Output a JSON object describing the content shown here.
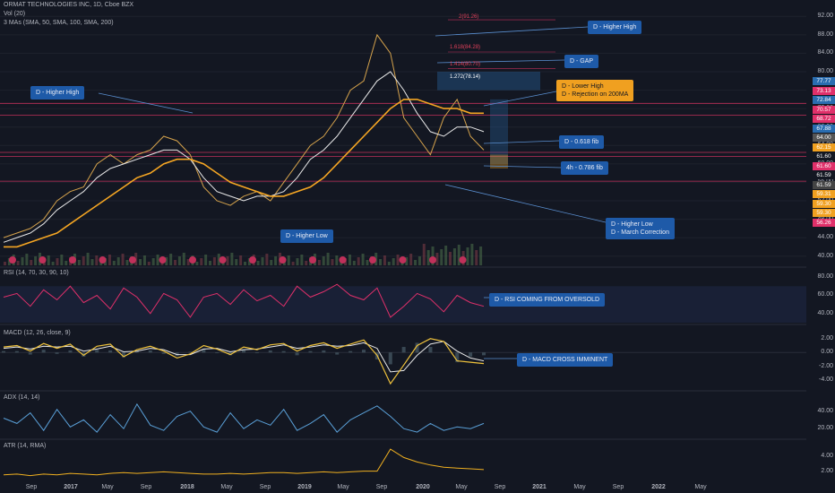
{
  "header": {
    "title": "ORMAT TECHNOLOGIES INC, 1D, Cboe BZX",
    "vol": "Vol (20)",
    "mas": "3 MAs (SMA, 50, SMA, 100, SMA, 200)",
    "rsi": "RSI (14, 70, 30, 90, 10)",
    "macd": "MACD (12, 26, close, 9)",
    "adx": "ADX (14, 14)",
    "atr": "ATR (14, RMA)"
  },
  "annotations": {
    "higher_high_top": "D - Higher High",
    "gap": "D - GAP",
    "lower_high_1": "D - Lower High",
    "lower_high_2": "D - Rejection on 200MA",
    "higher_high_left": "D - Higher High",
    "fib_0618": "D - 0.618 fib",
    "fib_0786": "4h - 0.786 fib",
    "higher_low": "D - Higher Low",
    "higher_low_2": "D - Higher Low",
    "march_correction": "D - March Correction",
    "rsi_note": "D - RSI COMING FROM OVERSOLD",
    "macd_note": "D - MACD CROSS IMMINENT"
  },
  "fib_labels": [
    "2(91.26)",
    "1.618(84.28)",
    "1.414(80.70)",
    "1.272(78.14)"
  ],
  "colors": {
    "background": "#131722",
    "price": "#d4a24c",
    "sma50": "#e9e9e9",
    "sma100": "#f5a623",
    "rsi": "#e0306a",
    "macd": "#f0c33c",
    "signal": "#e9e9e9",
    "adx": "#5aa0d8",
    "atr": "#f0b020",
    "annotation": "#1e5aa8",
    "annotation_orange": "#f0a020"
  },
  "chart_data": {
    "type": "line",
    "title": "ORMAT TECHNOLOGIES INC, 1D, Cboe BZX",
    "x_ticks": [
      "Sep",
      "2017",
      "May",
      "Sep",
      "2018",
      "May",
      "Sep",
      "2019",
      "May",
      "Sep",
      "2020",
      "May",
      "Sep",
      "2021",
      "May",
      "Sep",
      "2022",
      "May"
    ],
    "price_ticks": [
      "92.00",
      "88.00",
      "84.00",
      "80.00",
      "76.00",
      "72.00",
      "68.00",
      "64.00",
      "60.00",
      "56.00",
      "52.00",
      "48.00",
      "44.00",
      "40.00"
    ],
    "price_ylim": [
      38,
      94
    ],
    "price_tags": [
      {
        "value": "77.77",
        "color": "#2a6db0"
      },
      {
        "value": "73.13",
        "color": "#e0306a"
      },
      {
        "value": "72.84",
        "color": "#2a6db0"
      },
      {
        "value": "70.57",
        "color": "#e0306a"
      },
      {
        "value": "68.72",
        "color": "#e0306a"
      },
      {
        "value": "67.88",
        "color": "#2a6db0"
      },
      {
        "value": "64.00",
        "color": "#555"
      },
      {
        "value": "62.15",
        "color": "#f0a020"
      },
      {
        "value": "61.60",
        "color": "#131722"
      },
      {
        "value": "61.60",
        "color": "#e0306a"
      },
      {
        "value": "61.59",
        "color": "#131722"
      },
      {
        "value": "61.59",
        "color": "#444"
      },
      {
        "value": "59.31",
        "color": "#f0a020"
      },
      {
        "value": "59.30",
        "color": "#f0a020"
      },
      {
        "value": "59.30",
        "color": "#f0a020"
      },
      {
        "value": "56.26",
        "color": "#e0306a"
      }
    ],
    "series": [
      {
        "name": "Price",
        "values": [
          44,
          45,
          46,
          48,
          52,
          54,
          55,
          60,
          62,
          60,
          62,
          63,
          66,
          65,
          62,
          55,
          52,
          51,
          53,
          54,
          52,
          56,
          60,
          64,
          66,
          70,
          76,
          78,
          88,
          84,
          70,
          66,
          62,
          70,
          74,
          66,
          63
        ]
      },
      {
        "name": "SMA 50",
        "values": [
          43,
          44,
          45,
          47,
          50,
          52,
          54,
          57,
          59,
          60,
          61,
          62,
          63,
          63,
          61,
          57,
          54,
          53,
          52,
          53,
          53,
          54,
          57,
          61,
          63,
          66,
          70,
          74,
          78,
          80,
          76,
          71,
          67,
          66,
          68,
          68,
          67
        ]
      },
      {
        "name": "SMA 200",
        "values": [
          42,
          42,
          43,
          44,
          45,
          47,
          49,
          51,
          53,
          55,
          57,
          58,
          60,
          61,
          61,
          60,
          58,
          56,
          55,
          54,
          53,
          53,
          54,
          55,
          57,
          60,
          63,
          66,
          69,
          72,
          74,
          74,
          73,
          72,
          72,
          71,
          71
        ]
      }
    ],
    "rsi": {
      "ticks": [
        "80.00",
        "60.00",
        "40.00"
      ],
      "ylim": [
        30,
        85
      ],
      "values": [
        58,
        62,
        48,
        66,
        55,
        70,
        52,
        60,
        45,
        68,
        58,
        40,
        62,
        55,
        36,
        58,
        62,
        50,
        66,
        54,
        60,
        48,
        70,
        58,
        64,
        72,
        60,
        55,
        68,
        36,
        48,
        62,
        56,
        42,
        60,
        52,
        48
      ]
    },
    "macd": {
      "ticks": [
        "2.00",
        "0.00",
        "-2.00",
        "-4.00"
      ],
      "ylim": [
        -5,
        3
      ],
      "macd": [
        0.8,
        1.0,
        0.2,
        1.3,
        0.6,
        1.2,
        -0.4,
        0.9,
        1.2,
        -0.6,
        0.4,
        0.9,
        0.2,
        -0.8,
        -0.2,
        1.0,
        0.5,
        -0.3,
        0.8,
        0.4,
        1.1,
        1.3,
        0.2,
        1.0,
        1.4,
        0.6,
        1.2,
        1.8,
        -0.4,
        -4.5,
        -1.8,
        1.0,
        2.0,
        1.6,
        -1.2,
        -1.4,
        -1.6
      ],
      "signal": [
        0.6,
        0.8,
        0.5,
        0.9,
        0.8,
        0.9,
        0.2,
        0.5,
        0.9,
        0.1,
        0.2,
        0.6,
        0.4,
        -0.3,
        -0.3,
        0.5,
        0.6,
        0.1,
        0.4,
        0.5,
        0.8,
        1.1,
        0.6,
        0.8,
        1.1,
        0.9,
        1.0,
        1.4,
        0.6,
        -2.8,
        -2.6,
        -0.4,
        1.2,
        1.6,
        0.2,
        -0.8,
        -1.2
      ]
    },
    "adx": {
      "ticks": [
        "40.00",
        "20.00"
      ],
      "ylim": [
        10,
        55
      ],
      "values": [
        32,
        26,
        38,
        18,
        42,
        22,
        30,
        16,
        36,
        20,
        48,
        24,
        18,
        34,
        40,
        22,
        16,
        38,
        20,
        30,
        24,
        42,
        18,
        26,
        36,
        16,
        30,
        38,
        46,
        34,
        20,
        16,
        26,
        18,
        22,
        20,
        26
      ]
    },
    "atr": {
      "ticks": [
        "4.00",
        "2.00"
      ],
      "ylim": [
        1,
        5.5
      ],
      "values": [
        1.5,
        1.6,
        1.4,
        1.6,
        1.5,
        1.7,
        1.6,
        1.5,
        1.7,
        1.8,
        1.7,
        1.8,
        1.9,
        1.8,
        1.7,
        1.6,
        1.6,
        1.7,
        1.6,
        1.7,
        1.8,
        1.8,
        1.7,
        1.8,
        1.9,
        1.8,
        1.9,
        2.0,
        2.0,
        4.9,
        3.8,
        3.2,
        2.8,
        2.5,
        2.4,
        2.3,
        2.2
      ]
    }
  }
}
